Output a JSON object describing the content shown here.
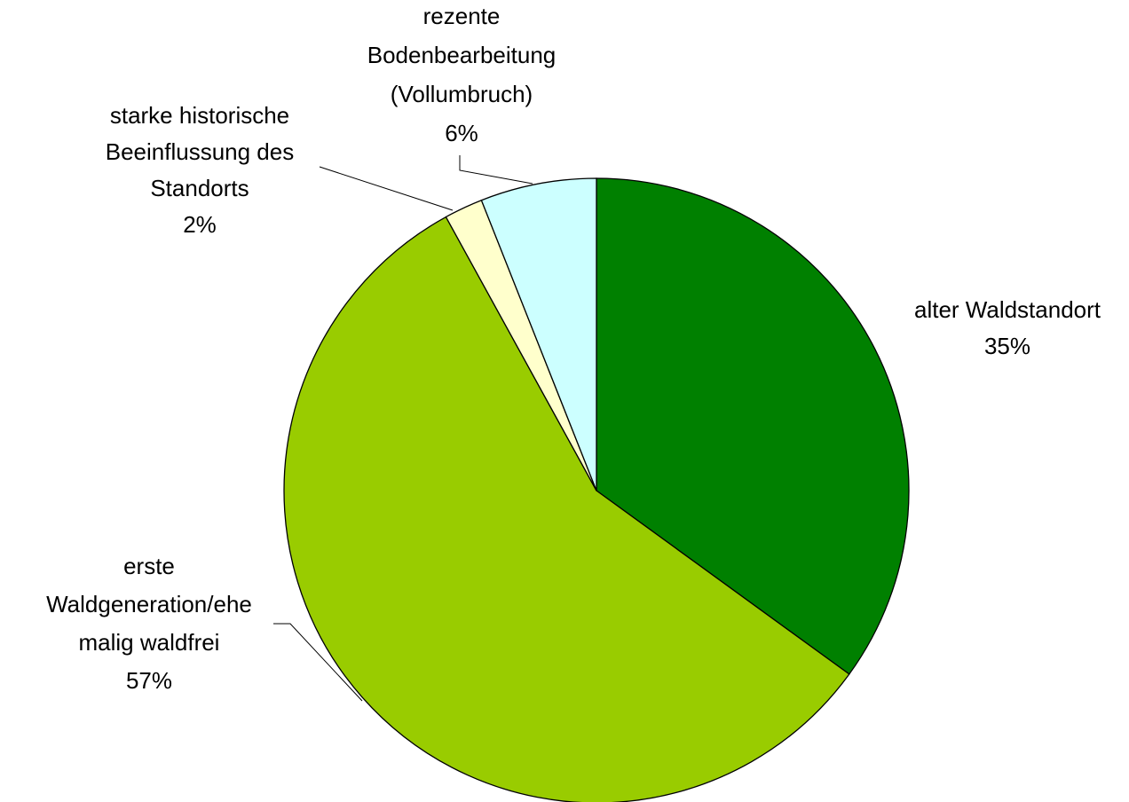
{
  "chart_data": {
    "type": "pie",
    "categories": [
      [
        "alter Waldstandort"
      ],
      [
        "erste",
        "Waldgeneration/ehe",
        "malig waldfrei"
      ],
      [
        "starke historische",
        "Beeinflussung des",
        "Standorts"
      ],
      [
        "rezente",
        "Bodenbearbeitung",
        "(Vollumbruch)"
      ]
    ],
    "values": [
      35,
      57,
      2,
      6
    ],
    "value_labels": [
      "35%",
      "57%",
      "2%",
      "6%"
    ],
    "colors": [
      "#008000",
      "#99cc00",
      "#ffffcc",
      "#ccffff"
    ]
  }
}
